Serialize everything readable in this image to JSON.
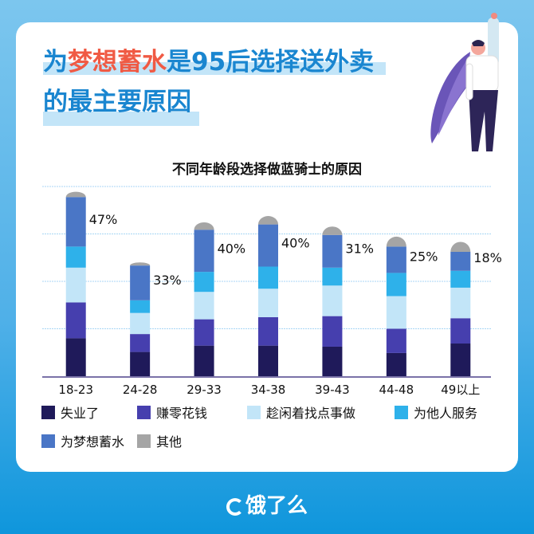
{
  "header": {
    "title_line1_prefix": "为",
    "title_line1_highlight": "梦想蓄水",
    "title_line1_suffix": "是95后选择送外卖",
    "title_line2": "的最主要原因",
    "highlight_color": "#f05a44",
    "title_color": "#1a86d0"
  },
  "chart_data": {
    "type": "bar",
    "stacked": true,
    "title": "不同年龄段选择做蓝骑士的原因",
    "categories": [
      "18-23",
      "24-28",
      "29-33",
      "34-38",
      "39-43",
      "44-48",
      "49以上"
    ],
    "series": [
      {
        "name": "失业了",
        "color": "#1f1a5a",
        "values": [
          36,
          23,
          29,
          29,
          28,
          22,
          31
        ]
      },
      {
        "name": "赚零花钱",
        "color": "#463fae",
        "values": [
          34,
          17,
          25,
          27,
          29,
          23,
          24
        ]
      },
      {
        "name": "趁闲着找点事做",
        "color": "#c2e5f8",
        "values": [
          33,
          20,
          26,
          27,
          29,
          31,
          29
        ]
      },
      {
        "name": "为他人服务",
        "color": "#2eb1ea",
        "values": [
          20,
          12,
          19,
          21,
          17,
          22,
          16
        ]
      },
      {
        "name": "为梦想蓄水",
        "color": "#4a76c6",
        "values": [
          47,
          33,
          40,
          40,
          31,
          25,
          18
        ]
      },
      {
        "name": "其他",
        "color": "#a5a5a5",
        "values": [
          5,
          3,
          7,
          8,
          8,
          10,
          10
        ]
      }
    ],
    "data_labels": [
      "47%",
      "33%",
      "40%",
      "40%",
      "31%",
      "25%",
      "18%"
    ],
    "ylim": [
      0,
      180
    ],
    "grid": true,
    "grid_step": 45,
    "legend_placement": "bottom"
  },
  "footer": {
    "logo": "饿了么"
  }
}
